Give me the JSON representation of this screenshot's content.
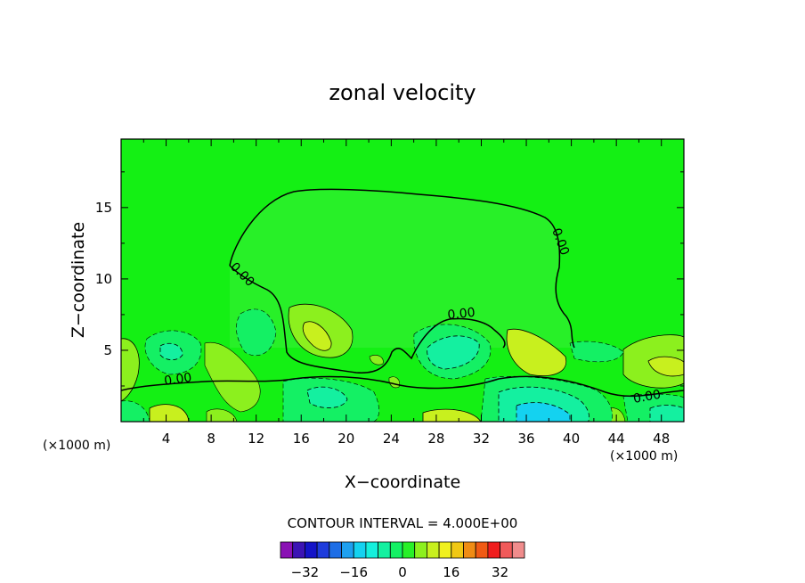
{
  "chart_data": {
    "type": "heatmap",
    "title": "zonal velocity",
    "xlabel": "X−coordinate",
    "ylabel": "Z−coordinate",
    "x_unit": "(×1000 m)",
    "xlim": [
      0,
      50
    ],
    "ylim": [
      0,
      19.8
    ],
    "x_ticks": [
      "4",
      "8",
      "12",
      "16",
      "20",
      "24",
      "28",
      "32",
      "36",
      "40",
      "44",
      "48"
    ],
    "y_ticks": [
      "5",
      "10",
      "15"
    ],
    "contour_label": "0.00",
    "contour_interval_text": "CONTOUR INTERVAL = 4.000E+00",
    "colorbar": {
      "min": -40,
      "max": 40,
      "step": 4,
      "tick_labels": [
        "−32",
        "−16",
        "0",
        "16",
        "32"
      ],
      "colors": [
        "#8a12b4",
        "#3c14b4",
        "#1414c8",
        "#1e3cdc",
        "#1e6ee6",
        "#1ea0f0",
        "#14d2f0",
        "#14f0dc",
        "#14f0a0",
        "#14f064",
        "#28f028",
        "#8cf01e",
        "#c8f01e",
        "#f0f01e",
        "#f0c814",
        "#f08c14",
        "#f05a14",
        "#f01e1e",
        "#f05a5a",
        "#f08c8c"
      ]
    },
    "colors": {
      "background_field": "#14f014",
      "contour_line": "#000000"
    }
  }
}
